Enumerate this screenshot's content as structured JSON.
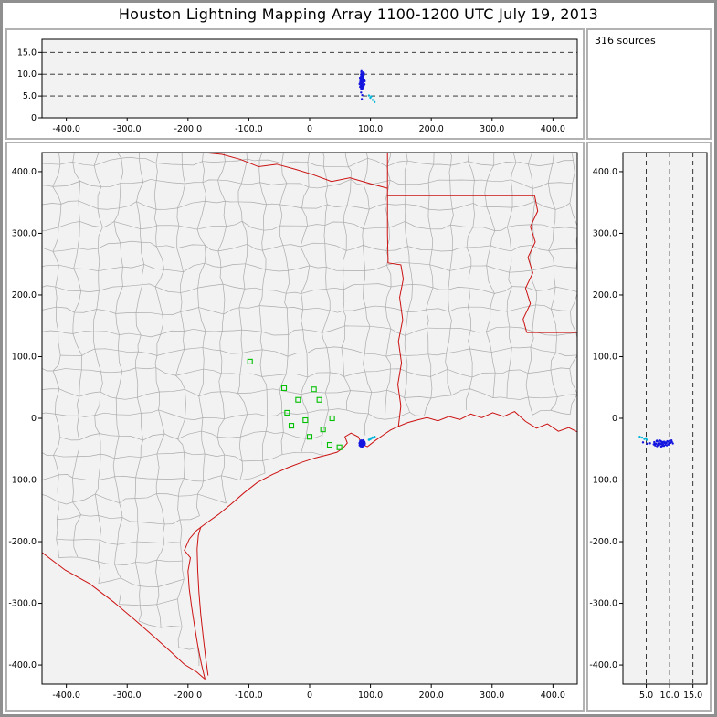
{
  "header": {
    "title": "Houston Lightning Mapping Array   1100-1200 UTC  July 19, 2013"
  },
  "sources_panel": {
    "label": "316 sources"
  },
  "chart_data": {
    "type": "scatter",
    "title": "Houston Lightning Mapping Array 1100-1200 UTC July 19, 2013",
    "source_count": 316,
    "grid": "dashed altitude reference lines at 5, 10, 15 km",
    "ranges": {
      "ew": [
        -440,
        440
      ],
      "ns": [
        -431,
        431
      ],
      "alt": [
        0,
        18
      ]
    },
    "colors": {
      "panel_bg": "#f2f2f2",
      "source_blue": "#1515e0",
      "source_cyan": "#00b4d8",
      "station_green": "#00c000",
      "state_red": "#cc1111",
      "county_gray": "#ababab"
    },
    "axes": {
      "ew": [
        {
          "v": -400,
          "t": "-400.0"
        },
        {
          "v": -300,
          "t": "-300.0"
        },
        {
          "v": -200,
          "t": "-200.0"
        },
        {
          "v": -100,
          "t": "-100.0"
        },
        {
          "v": 0,
          "t": "0"
        },
        {
          "v": 100,
          "t": "100.0"
        },
        {
          "v": 200,
          "t": "200.0"
        },
        {
          "v": 300,
          "t": "300.0"
        },
        {
          "v": 400,
          "t": "400.0"
        }
      ],
      "ns": [
        {
          "v": 400,
          "t": "400.0"
        },
        {
          "v": 300,
          "t": "300.0"
        },
        {
          "v": 200,
          "t": "200.0"
        },
        {
          "v": 100,
          "t": "100.0"
        },
        {
          "v": 0,
          "t": "0"
        },
        {
          "v": -100,
          "t": "-100.0"
        },
        {
          "v": -200,
          "t": "-200.0"
        },
        {
          "v": -300,
          "t": "-300.0"
        },
        {
          "v": -400,
          "t": "-400.0"
        }
      ],
      "alt_top": [
        {
          "v": 15,
          "t": "15.0"
        },
        {
          "v": 10,
          "t": "10.0"
        },
        {
          "v": 5,
          "t": "5.0"
        },
        {
          "v": 0,
          "t": "0"
        }
      ],
      "alt_right": [
        {
          "v": 5,
          "t": "5.0"
        },
        {
          "v": 10,
          "t": "10.0"
        },
        {
          "v": 15,
          "t": "15.0"
        }
      ],
      "alt_grid": [
        5,
        10,
        15
      ]
    },
    "stations": [
      [
        -98,
        92
      ],
      [
        -42,
        49
      ],
      [
        -19,
        30
      ],
      [
        7,
        47
      ],
      [
        16,
        30
      ],
      [
        -37,
        9
      ],
      [
        -30,
        -12
      ],
      [
        -7,
        -3
      ],
      [
        0,
        -30
      ],
      [
        22,
        -18
      ],
      [
        37,
        0
      ],
      [
        33,
        -43
      ],
      [
        49,
        -47
      ]
    ],
    "sources": [
      [
        84.2,
        -38.1,
        8.3
      ],
      [
        86.0,
        -40.9,
        7.6
      ],
      [
        83.1,
        -42.8,
        9.1
      ],
      [
        87.9,
        -39.2,
        8.9
      ],
      [
        85.3,
        -36.4,
        10.1
      ],
      [
        86.8,
        -44.0,
        6.9
      ],
      [
        82.2,
        -40.3,
        7.8
      ],
      [
        88.7,
        -41.8,
        8.5
      ],
      [
        84.0,
        -45.2,
        7.3
      ],
      [
        85.9,
        -37.7,
        9.6
      ],
      [
        83.4,
        -36.9,
        8.1
      ],
      [
        88.1,
        -35.8,
        10.4
      ],
      [
        84.8,
        -42.2,
        6.6
      ],
      [
        87.2,
        -40.1,
        9.3
      ],
      [
        89.9,
        -38.3,
        8.7
      ],
      [
        82.4,
        -43.6,
        7.7
      ],
      [
        86.3,
        -45.8,
        8.2
      ],
      [
        84.4,
        -39.9,
        9.9
      ],
      [
        88.3,
        -43.1,
        7.5
      ],
      [
        85.1,
        -38.8,
        8.8
      ],
      [
        90.6,
        -40.7,
        8.4
      ],
      [
        83.0,
        -41.2,
        7.1
      ],
      [
        87.4,
        -37.2,
        9.5
      ],
      [
        86.1,
        -42.9,
        8.6
      ],
      [
        84.5,
        -36.1,
        7.9
      ],
      [
        89.2,
        -39.8,
        10.2
      ],
      [
        85.6,
        -44.3,
        8.5
      ],
      [
        88.0,
        -41.0,
        7.0
      ],
      [
        86.4,
        -40.2,
        9.0
      ],
      [
        84.1,
        -41.9,
        8.1
      ],
      [
        90.1,
        -42.8,
        7.7
      ],
      [
        87.0,
        -42.3,
        9.7
      ],
      [
        83.3,
        -38.9,
        8.3
      ],
      [
        85.2,
        -40.8,
        10.7
      ],
      [
        89.0,
        -37.4,
        7.4
      ],
      [
        86.6,
        -38.6,
        6.7
      ],
      [
        84.3,
        -43.9,
        9.4
      ],
      [
        88.5,
        -38.0,
        8.9
      ],
      [
        85.0,
        -37.0,
        7.2
      ],
      [
        87.6,
        -44.8,
        8.4
      ],
      [
        82.8,
        -39.4,
        9.2
      ],
      [
        86.9,
        -36.6,
        10.0
      ],
      [
        84.7,
        -41.4,
        6.8
      ],
      [
        88.9,
        -42.5,
        9.8
      ],
      [
        85.7,
        -43.4,
        7.5
      ],
      [
        83.7,
        -40.0,
        8.6
      ],
      [
        87.3,
        -41.6,
        8.0
      ],
      [
        86.2,
        -39.5,
        9.2
      ],
      [
        84.9,
        -38.4,
        10.5
      ],
      [
        85.4,
        -42.6,
        7.8
      ],
      [
        83.9,
        -44.6,
        8.8
      ],
      [
        87.8,
        -36.2,
        7.3
      ],
      [
        85.8,
        -39.0,
        4.3
      ],
      [
        86.5,
        -41.3,
        5.2
      ],
      [
        84.6,
        -40.5,
        5.8
      ]
    ],
    "sources_cyan": [
      [
        99.8,
        -33.5,
        4.6
      ],
      [
        103.6,
        -31.2,
        4.1
      ],
      [
        97.5,
        -34.8,
        5.1
      ],
      [
        106.8,
        -30.0,
        3.6
      ],
      [
        101.2,
        -32.3,
        4.9
      ]
    ],
    "map": {
      "state_lines": {
        "rio_grande": [
          [
            -442,
            -216
          ],
          [
            -402,
            -246
          ],
          [
            -362,
            -268
          ],
          [
            -322,
            -298
          ],
          [
            -286,
            -328
          ],
          [
            -256,
            -354
          ],
          [
            -230,
            -377
          ],
          [
            -206,
            -399
          ],
          [
            -186,
            -411
          ],
          [
            -172,
            -423
          ]
        ],
        "coast": [
          [
            -172,
            -423
          ],
          [
            -178,
            -398
          ],
          [
            -184,
            -368
          ],
          [
            -189,
            -338
          ],
          [
            -194,
            -306
          ],
          [
            -198,
            -276
          ],
          [
            -200,
            -248
          ],
          [
            -196,
            -226
          ],
          [
            -206,
            -214
          ],
          [
            -198,
            -196
          ],
          [
            -186,
            -182
          ],
          [
            -170,
            -170
          ],
          [
            -150,
            -156
          ],
          [
            -129,
            -139
          ],
          [
            -108,
            -121
          ],
          [
            -86,
            -104
          ],
          [
            -61,
            -91
          ],
          [
            -36,
            -80
          ],
          [
            -12,
            -71
          ],
          [
            10,
            -64
          ],
          [
            30,
            -59
          ],
          [
            45,
            -55
          ],
          [
            55,
            -48
          ],
          [
            62,
            -40
          ],
          [
            58,
            -30
          ],
          [
            68,
            -24
          ],
          [
            80,
            -30
          ],
          [
            86,
            -42
          ],
          [
            95,
            -46
          ],
          [
            108,
            -36
          ],
          [
            121,
            -27
          ],
          [
            133,
            -19
          ],
          [
            146,
            -13
          ],
          [
            161,
            -7
          ],
          [
            176,
            -3
          ],
          [
            193,
            1
          ],
          [
            211,
            -4
          ],
          [
            229,
            3
          ],
          [
            247,
            -2
          ],
          [
            265,
            7
          ],
          [
            283,
            1
          ],
          [
            301,
            9
          ],
          [
            319,
            3
          ],
          [
            337,
            11
          ],
          [
            355,
            -5
          ],
          [
            373,
            -16
          ],
          [
            391,
            -9
          ],
          [
            409,
            -21
          ],
          [
            426,
            -15
          ],
          [
            442,
            -23
          ]
        ],
        "padre_island": [
          [
            -167,
            -417
          ],
          [
            -171,
            -388
          ],
          [
            -175,
            -354
          ],
          [
            -179,
            -318
          ],
          [
            -182,
            -282
          ],
          [
            -184,
            -246
          ],
          [
            -185,
            -212
          ],
          [
            -183,
            -190
          ],
          [
            -179,
            -176
          ]
        ],
        "sabine_border": [
          [
            146,
            -13
          ],
          [
            150,
            20
          ],
          [
            145,
            55
          ],
          [
            151,
            90
          ],
          [
            146,
            125
          ],
          [
            153,
            160
          ],
          [
            148,
            196
          ],
          [
            154,
            226
          ],
          [
            150,
            249
          ],
          [
            129,
            252
          ],
          [
            128,
            300
          ],
          [
            128,
            361
          ],
          [
            128,
            448
          ]
        ],
        "ar_la_border": [
          [
            128,
            361
          ],
          [
            370,
            361
          ]
        ],
        "mississippi_river": [
          [
            370,
            361
          ],
          [
            375,
            336
          ],
          [
            363,
            311
          ],
          [
            371,
            286
          ],
          [
            359,
            261
          ],
          [
            367,
            236
          ],
          [
            355,
            211
          ],
          [
            363,
            186
          ],
          [
            351,
            161
          ],
          [
            357,
            139
          ]
        ],
        "la_ms_border": [
          [
            357,
            139
          ],
          [
            442,
            139
          ]
        ],
        "red_river": [
          [
            128,
            373
          ],
          [
            98,
            381
          ],
          [
            66,
            390
          ],
          [
            36,
            384
          ],
          [
            6,
            395
          ],
          [
            -24,
            404
          ],
          [
            -54,
            412
          ],
          [
            -84,
            408
          ],
          [
            -114,
            420
          ],
          [
            -144,
            428
          ],
          [
            -174,
            431
          ],
          [
            -202,
            440
          ],
          [
            -228,
            449
          ]
        ]
      }
    }
  }
}
